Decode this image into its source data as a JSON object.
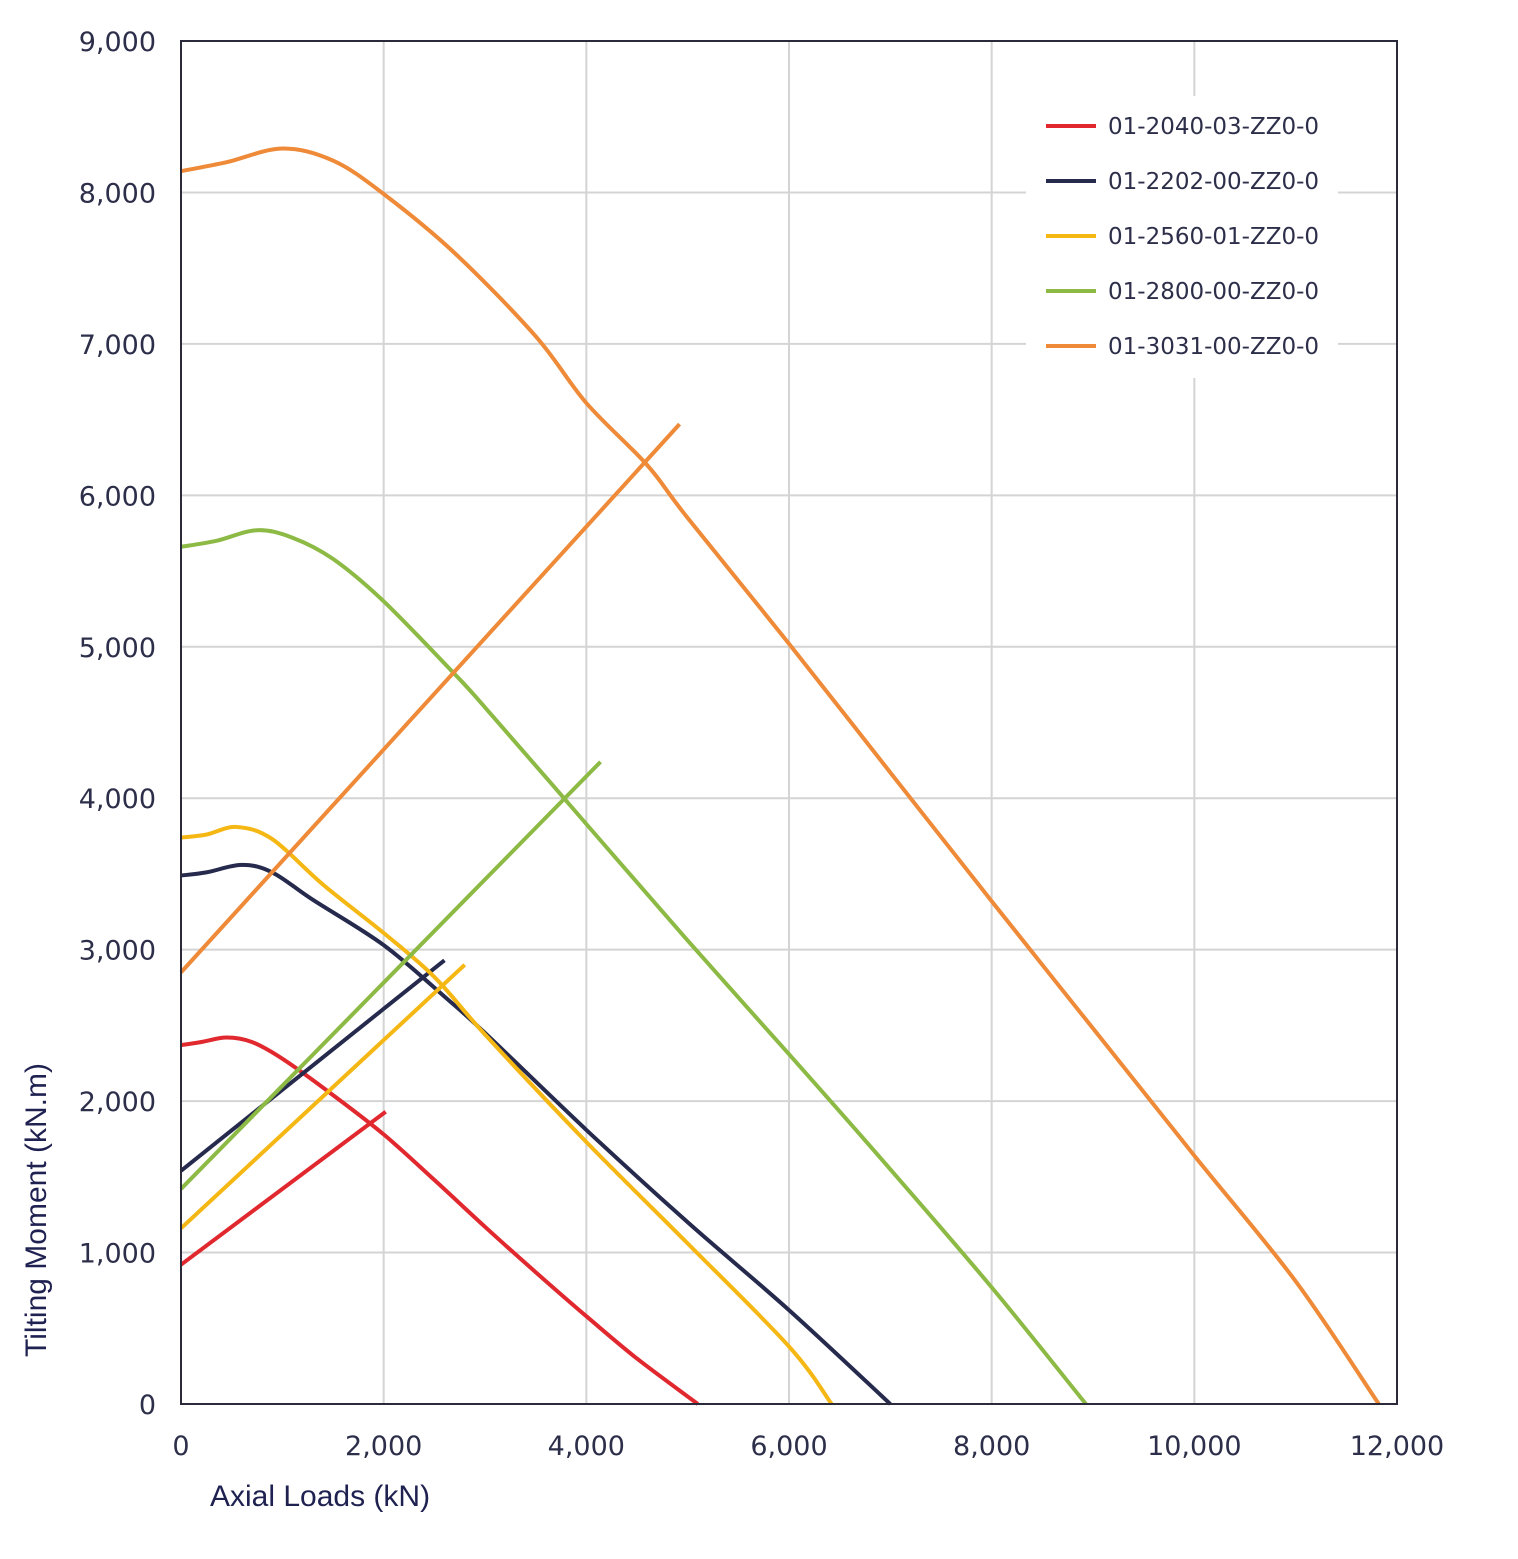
{
  "chart_data": {
    "type": "line",
    "title": "",
    "xlabel": "Axial Loads (kN)",
    "ylabel": "Tilting Moment (kN.m)",
    "xlim": [
      0,
      12000
    ],
    "ylim": [
      0,
      9000
    ],
    "x_ticks": [
      0,
      2000,
      4000,
      6000,
      8000,
      10000,
      12000
    ],
    "x_tick_labels": [
      "0",
      "2,000",
      "4,000",
      "6,000",
      "8,000",
      "10,000",
      "12,000"
    ],
    "y_ticks": [
      0,
      1000,
      2000,
      3000,
      4000,
      5000,
      6000,
      7000,
      8000,
      9000
    ],
    "y_tick_labels": [
      "0",
      "1,000",
      "2,000",
      "3,000",
      "4,000",
      "5,000",
      "6,000",
      "7,000",
      "8,000",
      "9,000"
    ],
    "grid": true,
    "legend_position": "top-right",
    "series": [
      {
        "name": "01-2040-03-ZZ0-0",
        "color": "#e0282e",
        "curve": [
          [
            0,
            2370
          ],
          [
            200,
            2390
          ],
          [
            450,
            2420
          ],
          [
            700,
            2390
          ],
          [
            1000,
            2280
          ],
          [
            1500,
            2040
          ],
          [
            2000,
            1780
          ],
          [
            2500,
            1480
          ],
          [
            3000,
            1170
          ],
          [
            3500,
            870
          ],
          [
            4000,
            580
          ],
          [
            4500,
            300
          ],
          [
            5100,
            0
          ]
        ],
        "line": [
          [
            0,
            920
          ],
          [
            2020,
            1930
          ]
        ]
      },
      {
        "name": "01-2202-00-ZZ0-0",
        "color": "#262a4d",
        "curve": [
          [
            0,
            3490
          ],
          [
            250,
            3510
          ],
          [
            600,
            3560
          ],
          [
            900,
            3510
          ],
          [
            1300,
            3330
          ],
          [
            2000,
            3030
          ],
          [
            2600,
            2690
          ],
          [
            3000,
            2450
          ],
          [
            4000,
            1810
          ],
          [
            5000,
            1200
          ],
          [
            6000,
            620
          ],
          [
            7000,
            0
          ]
        ],
        "line": [
          [
            0,
            1540
          ],
          [
            2600,
            2930
          ]
        ]
      },
      {
        "name": "01-2560-01-ZZ0-0",
        "color": "#f5b713",
        "curve": [
          [
            0,
            3740
          ],
          [
            250,
            3760
          ],
          [
            550,
            3810
          ],
          [
            900,
            3730
          ],
          [
            1400,
            3430
          ],
          [
            2000,
            3110
          ],
          [
            2500,
            2820
          ],
          [
            3000,
            2440
          ],
          [
            4000,
            1730
          ],
          [
            5000,
            1060
          ],
          [
            6000,
            380
          ],
          [
            6420,
            0
          ]
        ],
        "line": [
          [
            0,
            1160
          ],
          [
            2800,
            2900
          ]
        ]
      },
      {
        "name": "01-2800-00-ZZ0-0",
        "color": "#8cba45",
        "curve": [
          [
            0,
            5660
          ],
          [
            350,
            5700
          ],
          [
            750,
            5770
          ],
          [
            1100,
            5720
          ],
          [
            1500,
            5580
          ],
          [
            2000,
            5300
          ],
          [
            2700,
            4820
          ],
          [
            3000,
            4600
          ],
          [
            4000,
            3830
          ],
          [
            5000,
            3060
          ],
          [
            6000,
            2310
          ],
          [
            7000,
            1550
          ],
          [
            8000,
            770
          ],
          [
            8930,
            0
          ]
        ],
        "line": [
          [
            0,
            1420
          ],
          [
            4140,
            4240
          ]
        ]
      },
      {
        "name": "01-3031-00-ZZ0-0",
        "color": "#ee8a38",
        "curve": [
          [
            0,
            8140
          ],
          [
            450,
            8200
          ],
          [
            1000,
            8290
          ],
          [
            1500,
            8210
          ],
          [
            2000,
            7990
          ],
          [
            2700,
            7600
          ],
          [
            3500,
            7050
          ],
          [
            4000,
            6610
          ],
          [
            4600,
            6200
          ],
          [
            5000,
            5850
          ],
          [
            6000,
            5020
          ],
          [
            7000,
            4170
          ],
          [
            8000,
            3320
          ],
          [
            9000,
            2480
          ],
          [
            10000,
            1640
          ],
          [
            11000,
            810
          ],
          [
            11820,
            0
          ]
        ],
        "line": [
          [
            0,
            2850
          ],
          [
            4920,
            6470
          ]
        ]
      }
    ]
  }
}
